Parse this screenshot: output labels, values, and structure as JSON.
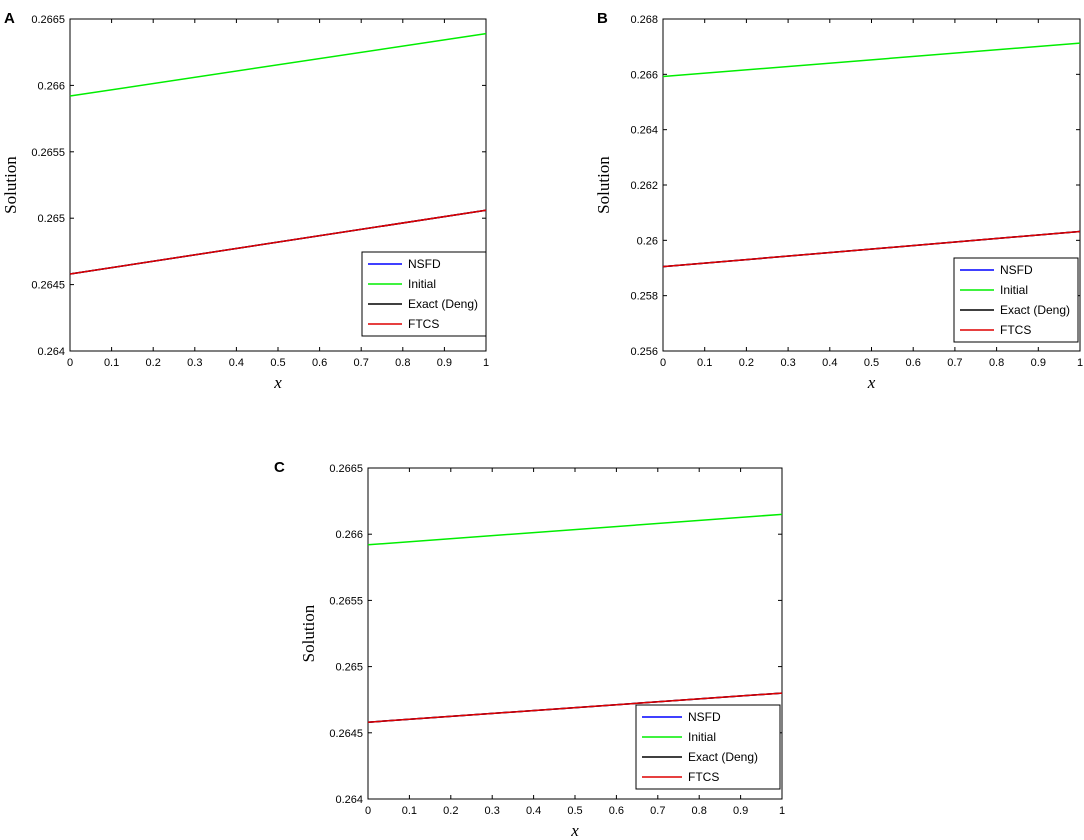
{
  "chart_data": [
    {
      "panel": "A",
      "type": "line",
      "title": "",
      "xlabel": "x",
      "ylabel": "Solution",
      "xlim": [
        0,
        1
      ],
      "ylim": [
        0.264,
        0.2665
      ],
      "xticks": [
        0,
        0.1,
        0.2,
        0.3,
        0.4,
        0.5,
        0.6,
        0.7,
        0.8,
        0.9,
        1
      ],
      "xtick_labels": [
        "0",
        "0.1",
        "0.2",
        "0.3",
        "0.4",
        "0.5",
        "0.6",
        "0.7",
        "0.8",
        "0.9",
        "1"
      ],
      "yticks": [
        0.264,
        0.2645,
        0.265,
        0.2655,
        0.266,
        0.2665
      ],
      "ytick_labels": [
        "0.264",
        "0.2645",
        "0.265",
        "0.2655",
        "0.266",
        "0.2665"
      ],
      "legend_position": "bottom-right",
      "x": [
        0,
        1
      ],
      "series": [
        {
          "name": "NSFD",
          "color": "#0000ff",
          "values": [
            0.26458,
            0.26506
          ]
        },
        {
          "name": "Initial",
          "color": "#00ee00",
          "values": [
            0.26592,
            0.26639
          ]
        },
        {
          "name": "Exact (Deng)",
          "color": "#000000",
          "values": [
            0.26458,
            0.26506
          ]
        },
        {
          "name": "FTCS",
          "color": "#dd0000",
          "values": [
            0.26458,
            0.26506
          ]
        }
      ],
      "draw_order": [
        "Initial",
        "NSFD",
        "Exact (Deng)",
        "FTCS"
      ]
    },
    {
      "panel": "B",
      "type": "line",
      "title": "",
      "xlabel": "x",
      "ylabel": "Solution",
      "xlim": [
        0,
        1
      ],
      "ylim": [
        0.256,
        0.268
      ],
      "xticks": [
        0,
        0.1,
        0.2,
        0.3,
        0.4,
        0.5,
        0.6,
        0.7,
        0.8,
        0.9,
        1
      ],
      "xtick_labels": [
        "0",
        "0.1",
        "0.2",
        "0.3",
        "0.4",
        "0.5",
        "0.6",
        "0.7",
        "0.8",
        "0.9",
        "1"
      ],
      "yticks": [
        0.256,
        0.258,
        0.26,
        0.262,
        0.264,
        0.266,
        0.268
      ],
      "ytick_labels": [
        "0.256",
        "0.258",
        "0.26",
        "0.262",
        "0.264",
        "0.266",
        "0.268"
      ],
      "legend_position": "bottom-right",
      "x": [
        0,
        1
      ],
      "series": [
        {
          "name": "NSFD",
          "color": "#0000ff",
          "values": [
            0.25905,
            0.26032
          ]
        },
        {
          "name": "Initial",
          "color": "#00ee00",
          "values": [
            0.26592,
            0.26713
          ]
        },
        {
          "name": "Exact (Deng)",
          "color": "#000000",
          "values": [
            0.25905,
            0.26032
          ]
        },
        {
          "name": "FTCS",
          "color": "#dd0000",
          "values": [
            0.25905,
            0.26032
          ]
        }
      ],
      "draw_order": [
        "Initial",
        "NSFD",
        "Exact (Deng)",
        "FTCS"
      ]
    },
    {
      "panel": "C",
      "type": "line",
      "title": "",
      "xlabel": "x",
      "ylabel": "Solution",
      "xlim": [
        0,
        1
      ],
      "ylim": [
        0.264,
        0.2665
      ],
      "xticks": [
        0,
        0.1,
        0.2,
        0.3,
        0.4,
        0.5,
        0.6,
        0.7,
        0.8,
        0.9,
        1
      ],
      "xtick_labels": [
        "0",
        "0.1",
        "0.2",
        "0.3",
        "0.4",
        "0.5",
        "0.6",
        "0.7",
        "0.8",
        "0.9",
        "1"
      ],
      "yticks": [
        0.264,
        0.2645,
        0.265,
        0.2655,
        0.266,
        0.2665
      ],
      "ytick_labels": [
        "0.264",
        "0.2645",
        "0.265",
        "0.2655",
        "0.266",
        "0.2665"
      ],
      "legend_position": "bottom-right",
      "x": [
        0,
        1
      ],
      "series": [
        {
          "name": "NSFD",
          "color": "#0000ff",
          "values": [
            0.26458,
            0.2648
          ]
        },
        {
          "name": "Initial",
          "color": "#00ee00",
          "values": [
            0.26592,
            0.26615
          ]
        },
        {
          "name": "Exact (Deng)",
          "color": "#000000",
          "values": [
            0.26458,
            0.2648
          ]
        },
        {
          "name": "FTCS",
          "color": "#dd0000",
          "values": [
            0.26458,
            0.2648
          ]
        }
      ],
      "draw_order": [
        "Initial",
        "NSFD",
        "Exact (Deng)",
        "FTCS"
      ]
    }
  ]
}
